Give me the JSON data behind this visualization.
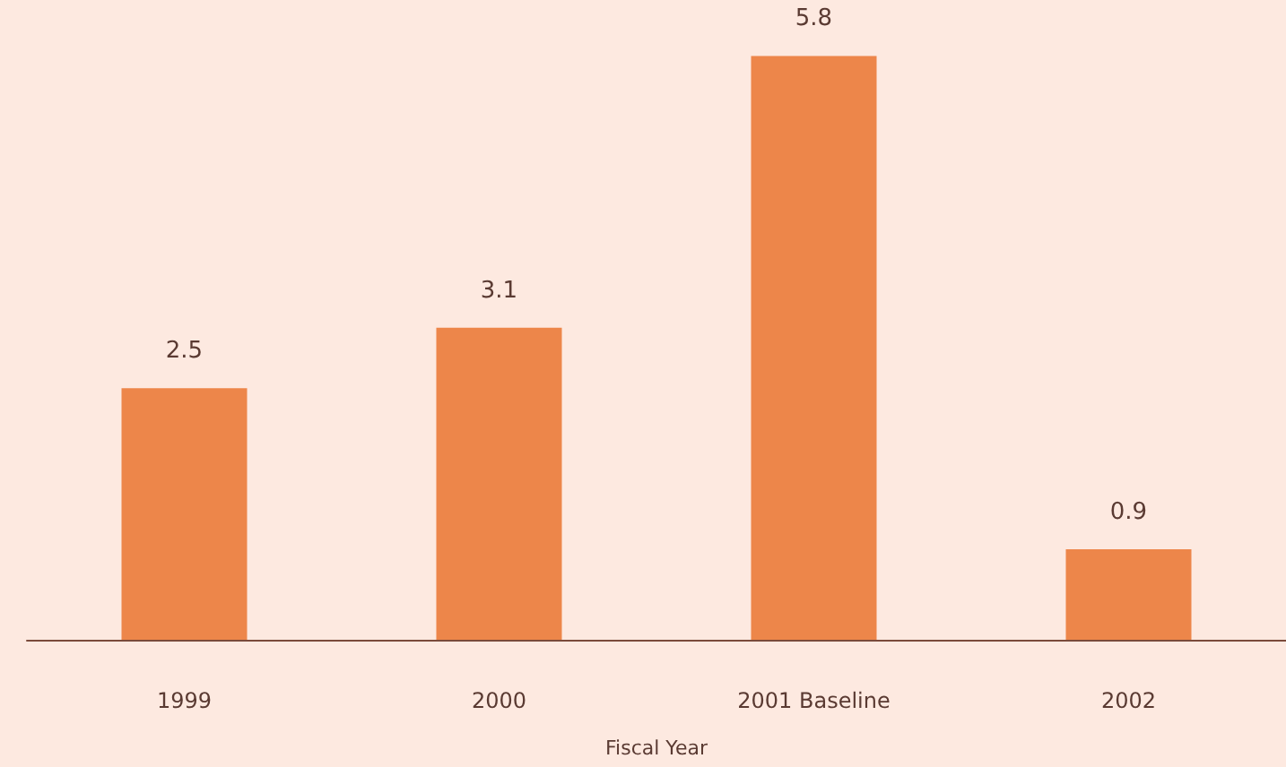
{
  "chart_data": {
    "type": "bar",
    "xlabel": "Fiscal Year",
    "categories": [
      "1999",
      "2000",
      "2001 Baseline",
      "2002"
    ],
    "values": [
      2.5,
      3.1,
      5.8,
      0.9
    ],
    "color": "#ed864a",
    "data_labels": true
  }
}
